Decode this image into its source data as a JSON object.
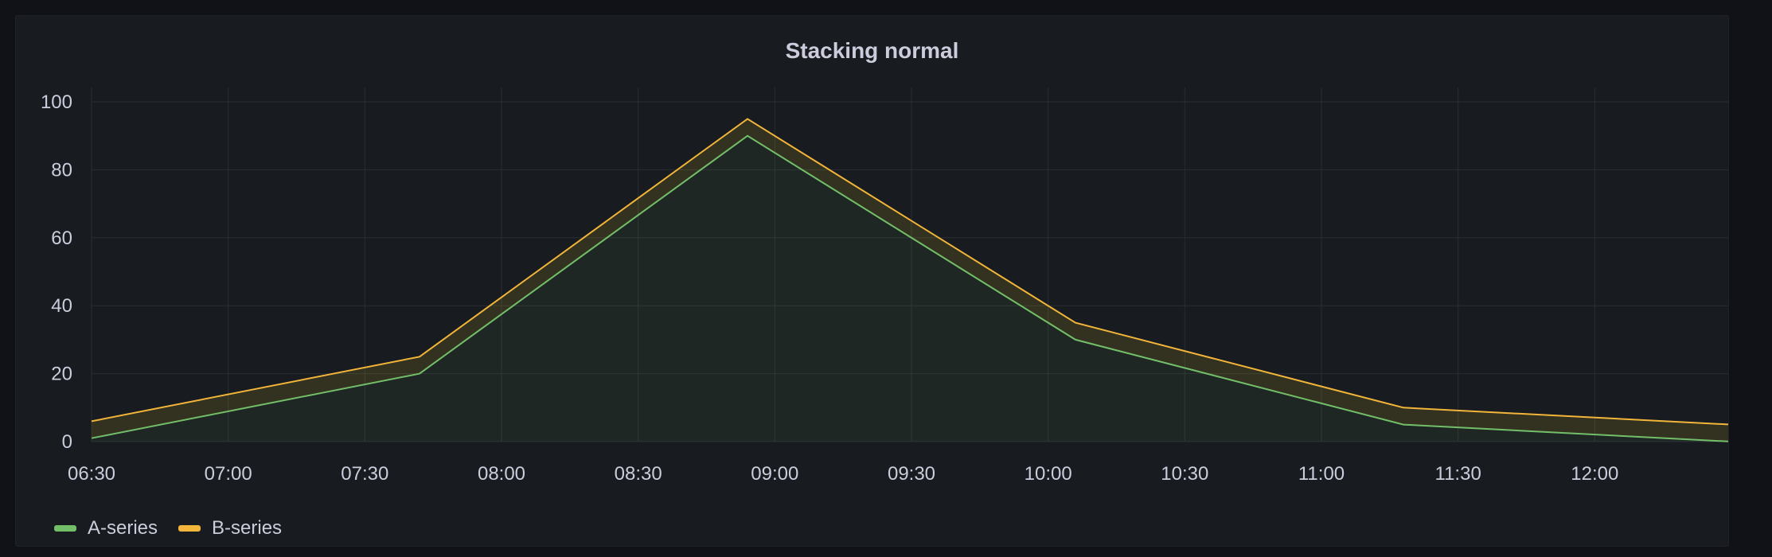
{
  "panel": {
    "title": "Stacking normal"
  },
  "colors": {
    "background": "#181b1f",
    "grid": "#2a2d33",
    "text": "#ccccdc"
  },
  "chart_data": {
    "type": "area",
    "title": "Stacking normal",
    "stacking": "normal",
    "grid": true,
    "legend": "bottom-left",
    "x_ticks": [
      "06:30",
      "07:00",
      "07:30",
      "08:00",
      "08:30",
      "09:00",
      "09:30",
      "10:00",
      "10:30",
      "11:00",
      "11:30",
      "12:00"
    ],
    "y_ticks": [
      "0",
      "20",
      "40",
      "60",
      "80",
      "100"
    ],
    "ylim": [
      0,
      100
    ],
    "xlim": [
      "06:30",
      "12:30"
    ],
    "x": [
      "06:30",
      "07:42",
      "08:54",
      "10:06",
      "11:18",
      "12:30"
    ],
    "series": [
      {
        "name": "A-series",
        "color": "#73bf69",
        "values": [
          1,
          20,
          90,
          30,
          5,
          0
        ]
      },
      {
        "name": "B-series",
        "color": "#fade2a",
        "stroke": "#f2b53a",
        "values": [
          5,
          5,
          5,
          5,
          5,
          5
        ]
      }
    ]
  }
}
